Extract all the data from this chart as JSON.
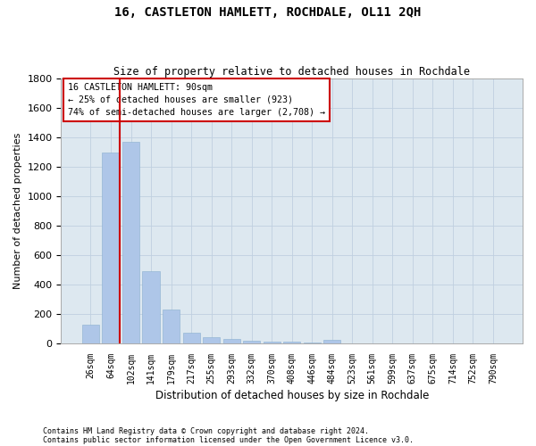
{
  "title": "16, CASTLETON HAMLETT, ROCHDALE, OL11 2QH",
  "subtitle": "Size of property relative to detached houses in Rochdale",
  "xlabel": "Distribution of detached houses by size in Rochdale",
  "ylabel": "Number of detached properties",
  "categories": [
    "26sqm",
    "64sqm",
    "102sqm",
    "141sqm",
    "179sqm",
    "217sqm",
    "255sqm",
    "293sqm",
    "332sqm",
    "370sqm",
    "408sqm",
    "446sqm",
    "484sqm",
    "523sqm",
    "561sqm",
    "599sqm",
    "637sqm",
    "675sqm",
    "714sqm",
    "752sqm",
    "790sqm"
  ],
  "values": [
    130,
    1300,
    1370,
    490,
    230,
    75,
    45,
    30,
    20,
    15,
    10,
    8,
    25,
    3,
    2,
    2,
    1,
    1,
    1,
    1,
    1
  ],
  "bar_color": "#aec6e8",
  "bar_edge_color": "#8ab0d0",
  "red_line_color": "#cc0000",
  "red_line_x": 2.0,
  "annotation_title": "16 CASTLETON HAMLETT: 90sqm",
  "annotation_line1": "← 25% of detached houses are smaller (923)",
  "annotation_line2": "74% of semi-detached houses are larger (2,708) →",
  "ylim": [
    0,
    1800
  ],
  "yticks": [
    0,
    200,
    400,
    600,
    800,
    1000,
    1200,
    1400,
    1600,
    1800
  ],
  "footer_line1": "Contains HM Land Registry data © Crown copyright and database right 2024.",
  "footer_line2": "Contains public sector information licensed under the Open Government Licence v3.0.",
  "bg_color": "#ffffff",
  "plot_bg_color": "#dde8f0",
  "grid_color": "#c0d0e0",
  "title_fontsize": 10,
  "subtitle_fontsize": 8.5,
  "axis_label_fontsize": 8,
  "tick_fontsize": 7,
  "footer_fontsize": 6
}
